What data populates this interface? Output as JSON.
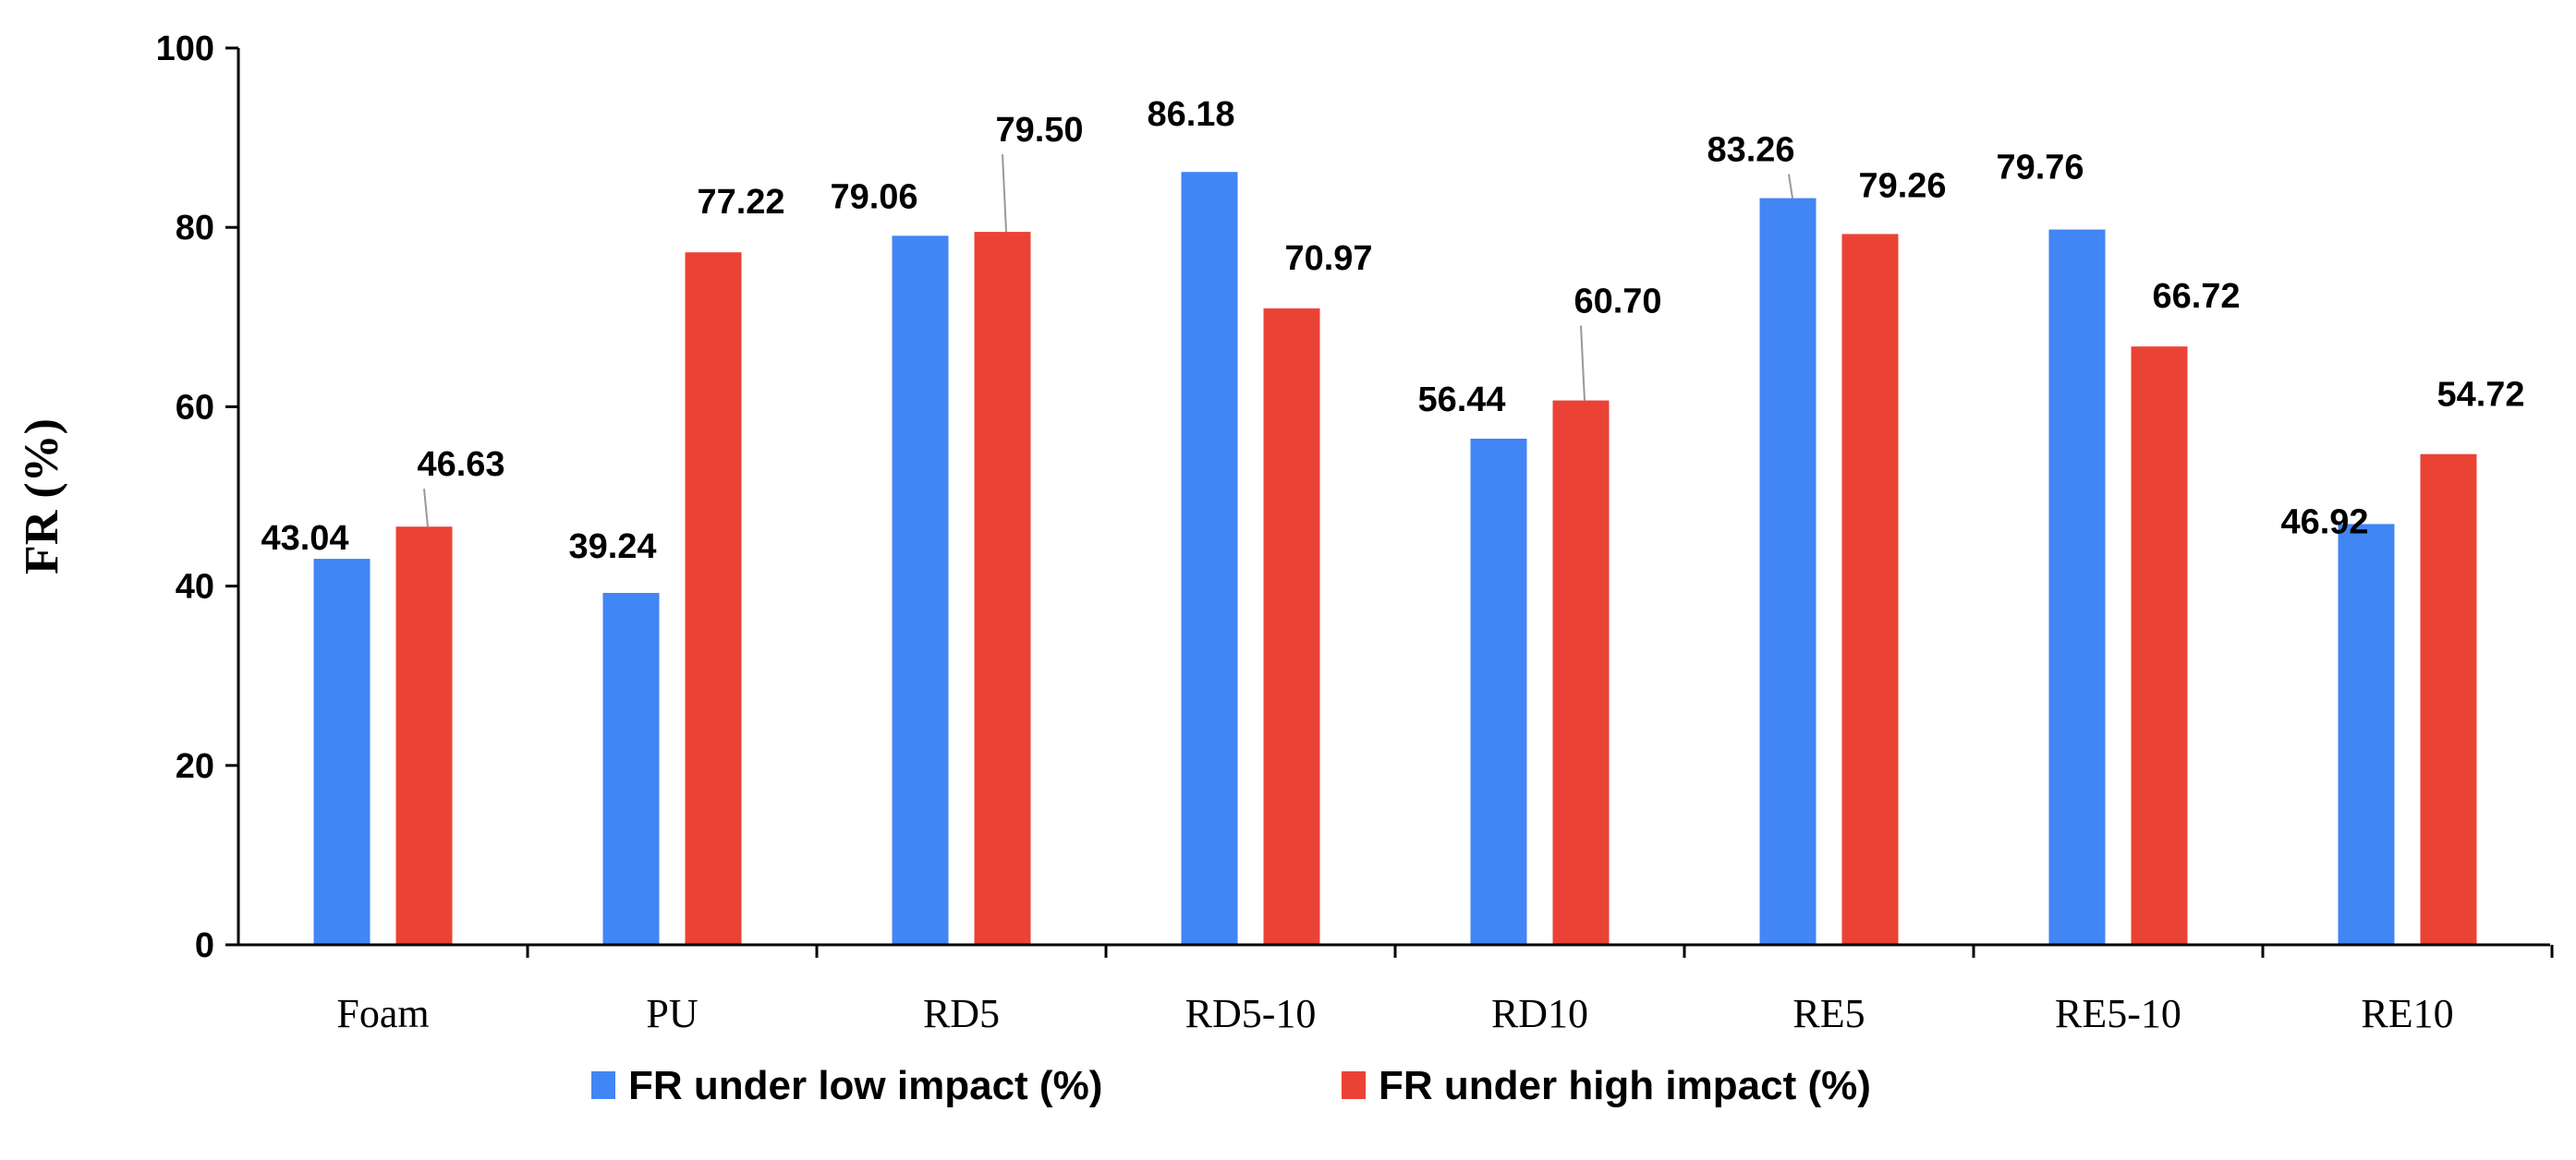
{
  "chart_data": {
    "type": "bar",
    "title": "",
    "xlabel": "",
    "ylabel": "FR (%)",
    "ylim": [
      0,
      100
    ],
    "yticks": [
      0,
      20,
      40,
      60,
      80,
      100
    ],
    "grid": false,
    "legend_position": "bottom-center",
    "categories": [
      "Foam",
      "PU",
      "RD5",
      "RD5-10",
      "RD10",
      "RE5",
      "RE5-10",
      "RE10"
    ],
    "series": [
      {
        "name": "FR under low impact (%)",
        "color": "#4285F4",
        "values": [
          43.04,
          39.24,
          79.06,
          86.18,
          56.44,
          83.26,
          79.76,
          46.92
        ],
        "labels": [
          "43.04",
          "39.24",
          "79.06",
          "86.18",
          "56.44",
          "83.26",
          "79.76",
          "46.92"
        ]
      },
      {
        "name": "FR under high impact (%)",
        "color": "#EA4335",
        "values": [
          46.63,
          77.22,
          79.5,
          70.97,
          60.7,
          79.26,
          66.72,
          54.72
        ],
        "labels": [
          "46.63",
          "77.22",
          "79.50",
          "70.97",
          "60.70",
          "79.26",
          "66.72",
          "54.72"
        ]
      }
    ]
  }
}
